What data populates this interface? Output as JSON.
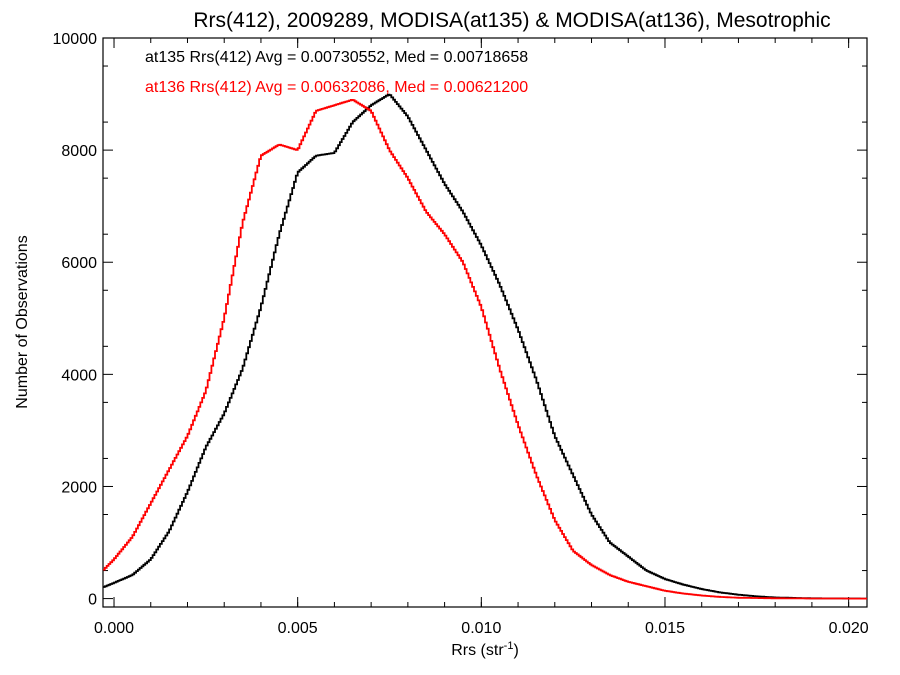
{
  "chart_data": {
    "type": "line",
    "title": "Rrs(412), 2009289, MODISA(at135) & MODISA(at136), Mesotrophic",
    "xlabel_main": "Rrs (str",
    "xlabel_sup": "-1",
    "xlabel_end": ")",
    "ylabel": "Number of Observations",
    "xlim": [
      -0.0003,
      0.0205
    ],
    "ylim": [
      -150,
      10000
    ],
    "xticks": [
      0.0,
      0.005,
      0.01,
      0.015,
      0.02
    ],
    "xtick_labels": [
      "0.000",
      "0.005",
      "0.010",
      "0.015",
      "0.020"
    ],
    "yticks": [
      0,
      2000,
      4000,
      6000,
      8000,
      10000
    ],
    "ytick_labels": [
      "0",
      "2000",
      "4000",
      "6000",
      "8000",
      "10000"
    ],
    "grid": false,
    "legend_placement": "top-left",
    "series": [
      {
        "label": "at135 Rrs(412) Avg = 0.00730552, Med = 0.00718658",
        "color": "#000000",
        "points": [
          [
            -0.0003,
            200
          ],
          [
            0.0,
            280
          ],
          [
            0.0005,
            420
          ],
          [
            0.001,
            700
          ],
          [
            0.0015,
            1200
          ],
          [
            0.002,
            1900
          ],
          [
            0.0025,
            2700
          ],
          [
            0.003,
            3300
          ],
          [
            0.0035,
            4100
          ],
          [
            0.004,
            5200
          ],
          [
            0.0045,
            6500
          ],
          [
            0.005,
            7600
          ],
          [
            0.0055,
            7900
          ],
          [
            0.006,
            7950
          ],
          [
            0.0065,
            8500
          ],
          [
            0.007,
            8800
          ],
          [
            0.0075,
            9000
          ],
          [
            0.008,
            8600
          ],
          [
            0.0085,
            8000
          ],
          [
            0.009,
            7400
          ],
          [
            0.0095,
            6900
          ],
          [
            0.01,
            6300
          ],
          [
            0.0105,
            5600
          ],
          [
            0.011,
            4800
          ],
          [
            0.0115,
            3900
          ],
          [
            0.012,
            2900
          ],
          [
            0.0125,
            2200
          ],
          [
            0.013,
            1500
          ],
          [
            0.0135,
            1000
          ],
          [
            0.014,
            750
          ],
          [
            0.0145,
            500
          ],
          [
            0.015,
            350
          ],
          [
            0.0155,
            250
          ],
          [
            0.016,
            170
          ],
          [
            0.0165,
            110
          ],
          [
            0.017,
            70
          ],
          [
            0.0175,
            40
          ],
          [
            0.018,
            20
          ],
          [
            0.019,
            5
          ],
          [
            0.02,
            2
          ],
          [
            0.0205,
            0
          ]
        ]
      },
      {
        "label": "at136 Rrs(412) Avg = 0.00632086, Med = 0.00621200",
        "color": "#ff0000",
        "points": [
          [
            -0.0003,
            500
          ],
          [
            0.0,
            700
          ],
          [
            0.0005,
            1100
          ],
          [
            0.001,
            1700
          ],
          [
            0.0015,
            2300
          ],
          [
            0.002,
            2900
          ],
          [
            0.0025,
            3700
          ],
          [
            0.003,
            5000
          ],
          [
            0.0035,
            6700
          ],
          [
            0.004,
            7900
          ],
          [
            0.0045,
            8100
          ],
          [
            0.005,
            8000
          ],
          [
            0.0055,
            8700
          ],
          [
            0.006,
            8800
          ],
          [
            0.0065,
            8900
          ],
          [
            0.007,
            8700
          ],
          [
            0.0075,
            8000
          ],
          [
            0.008,
            7500
          ],
          [
            0.0085,
            6900
          ],
          [
            0.009,
            6500
          ],
          [
            0.0095,
            6000
          ],
          [
            0.01,
            5200
          ],
          [
            0.0105,
            4100
          ],
          [
            0.011,
            3100
          ],
          [
            0.0115,
            2200
          ],
          [
            0.012,
            1400
          ],
          [
            0.0125,
            850
          ],
          [
            0.013,
            600
          ],
          [
            0.0135,
            420
          ],
          [
            0.014,
            300
          ],
          [
            0.0145,
            220
          ],
          [
            0.015,
            140
          ],
          [
            0.0155,
            90
          ],
          [
            0.016,
            55
          ],
          [
            0.0165,
            30
          ],
          [
            0.017,
            15
          ],
          [
            0.018,
            5
          ],
          [
            0.019,
            2
          ],
          [
            0.0205,
            0
          ]
        ]
      }
    ]
  }
}
